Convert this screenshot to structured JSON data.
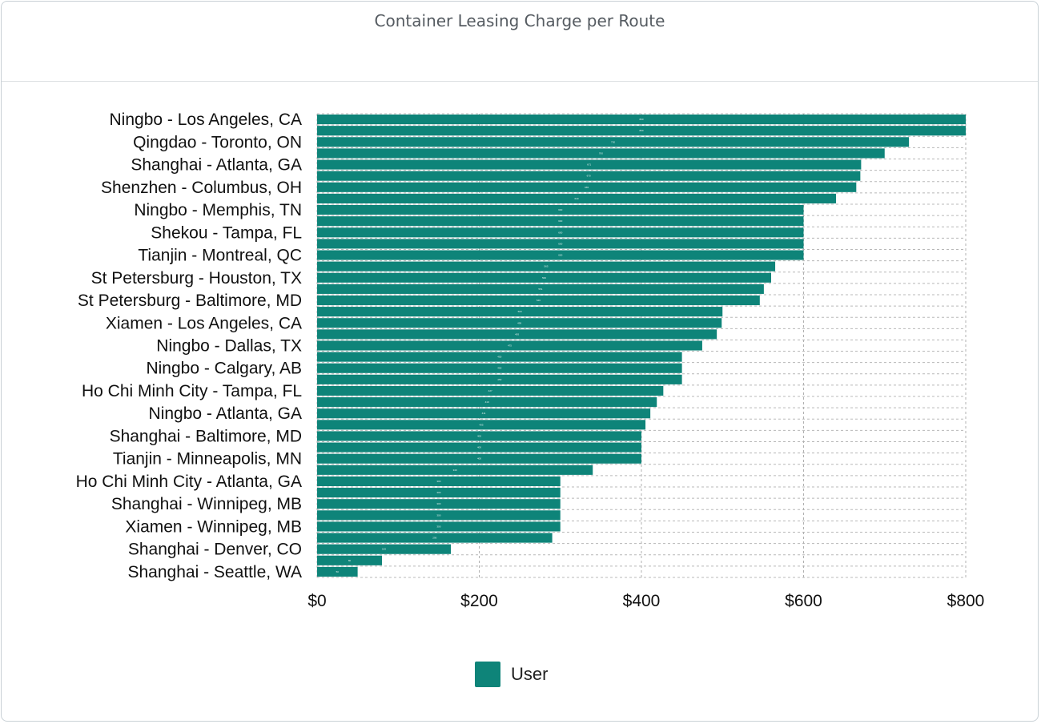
{
  "chart_data": {
    "type": "bar",
    "orientation": "horizontal",
    "title": "Container Leasing Charge per Route",
    "xlabel": "",
    "ylabel": "",
    "xlim": [
      0,
      800
    ],
    "x_ticks": [
      0,
      200,
      400,
      600,
      800
    ],
    "x_tick_labels": [
      "$0",
      "$200",
      "$400",
      "$600",
      "$800"
    ],
    "grid": true,
    "legend_position": "bottom",
    "categories": [
      "Ningbo - Los Angeles, CA",
      "",
      "Qingdao - Toronto, ON",
      "",
      "Shanghai - Atlanta, GA",
      "",
      "Shenzhen - Columbus, OH",
      "",
      "Ningbo - Memphis, TN",
      "",
      "Shekou - Tampa, FL",
      "",
      "Tianjin - Montreal, QC",
      "",
      "St Petersburg - Houston, TX",
      "",
      "St Petersburg - Baltimore, MD",
      "",
      "Xiamen - Los Angeles, CA",
      "",
      "Ningbo - Dallas, TX",
      "",
      "Ningbo - Calgary, AB",
      "",
      "Ho Chi Minh City - Tampa, FL",
      "",
      "Ningbo - Atlanta, GA",
      "",
      "Shanghai - Baltimore, MD",
      "",
      "Tianjin - Minneapolis, MN",
      "",
      "Ho Chi Minh City - Atlanta, GA",
      "",
      "Shanghai - Winnipeg, MB",
      "",
      "Xiamen - Winnipeg, MB",
      "",
      "Shanghai - Denver, CO",
      "",
      "Shanghai - Seattle, WA"
    ],
    "series": [
      {
        "name": "User",
        "color": "#0e8479",
        "values": [
          800,
          800,
          730,
          700,
          671,
          670,
          665,
          640,
          600,
          600,
          600,
          600,
          600,
          565,
          560,
          551,
          546,
          500,
          499,
          493,
          475,
          450,
          450,
          450,
          427,
          419,
          411,
          405,
          400,
          400,
          400,
          340,
          300,
          300,
          300,
          300,
          300,
          290,
          165,
          80,
          50
        ]
      }
    ]
  },
  "legend": {
    "label": "User",
    "color": "#0e8479"
  }
}
